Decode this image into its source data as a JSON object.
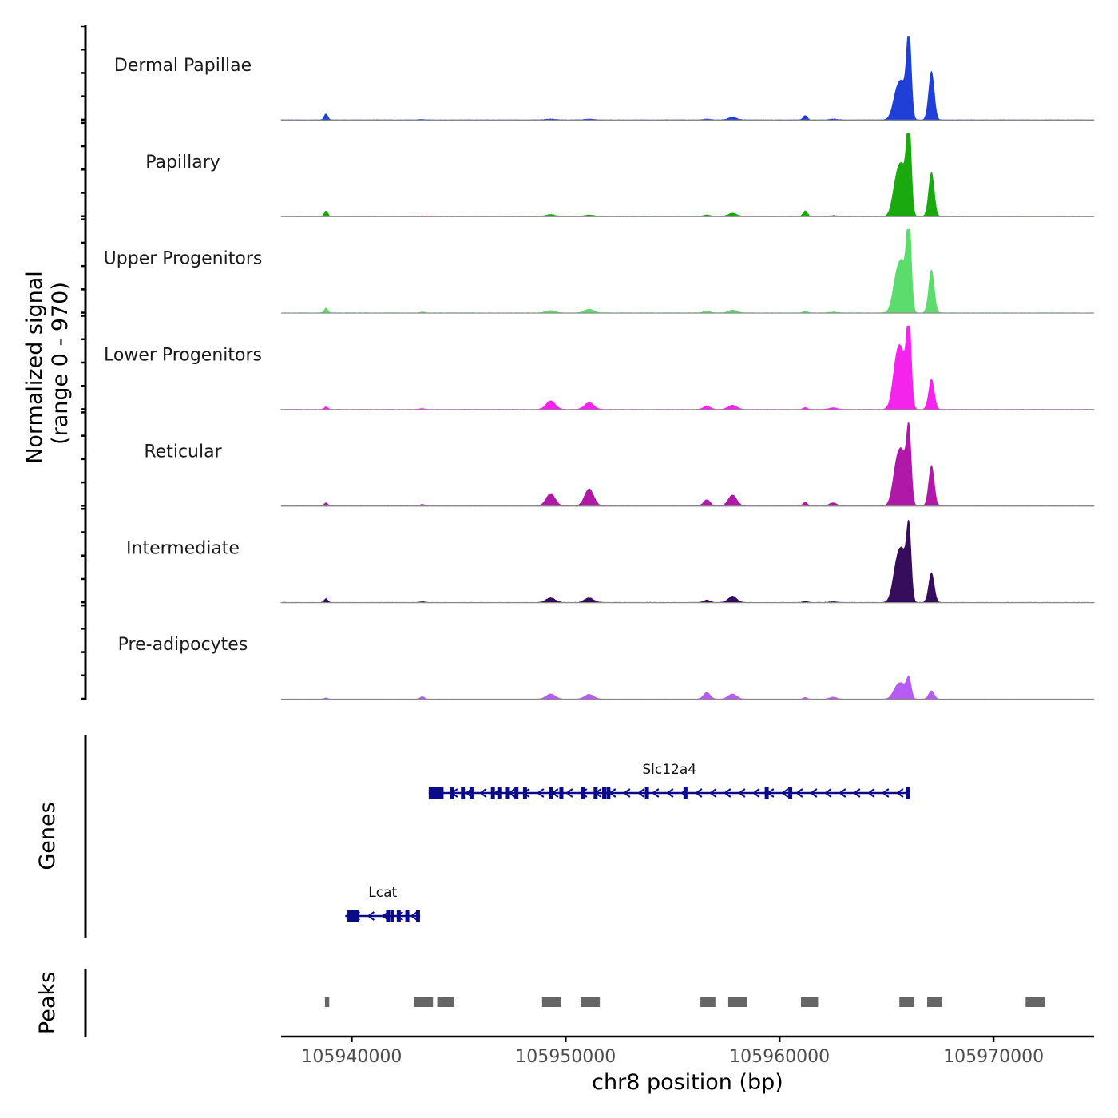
{
  "chart_data": {
    "type": "coverage",
    "chromosome": "chr8",
    "region": {
      "start": 105936700,
      "end": 105974700
    },
    "y_axis_title": "Normalized signal",
    "y_axis_range_label": "(range 0 - 970)",
    "ylim": [
      0,
      970
    ],
    "x_axis_title": "chr8 position (bp)",
    "x_ticks": [
      {
        "value": 105940000,
        "label": "105940000"
      },
      {
        "value": 105950000,
        "label": "105950000"
      },
      {
        "value": 105960000,
        "label": "105960000"
      },
      {
        "value": 105970000,
        "label": "105970000"
      }
    ],
    "tracks": [
      {
        "name": "Dermal Papillae",
        "color": "#1f3fd6",
        "scale": 1.0
      },
      {
        "name": "Papillary",
        "color": "#1aaa10",
        "scale": 1.06
      },
      {
        "name": "Upper Progenitors",
        "color": "#5cdc6c",
        "scale": 1.06
      },
      {
        "name": "Lower Progenitors",
        "color": "#f424ec",
        "scale": 1.0
      },
      {
        "name": "Reticular",
        "color": "#b018a8",
        "scale": 0.9
      },
      {
        "name": "Intermediate",
        "color": "#360c5c",
        "scale": 0.9
      },
      {
        "name": "Pre-adipocytes",
        "color": "#b65cf2",
        "scale": 0.46
      }
    ],
    "coverage_peaks": [
      {
        "pos": 105938800,
        "width": 120,
        "heights": [
          70,
          60,
          50,
          30,
          40,
          50,
          30
        ]
      },
      {
        "pos": 105943300,
        "width": 150,
        "heights": [
          5,
          5,
          10,
          10,
          20,
          10,
          60
        ]
      },
      {
        "pos": 105949300,
        "width": 300,
        "heights": [
          10,
          20,
          25,
          100,
          160,
          60,
          130
        ]
      },
      {
        "pos": 105951100,
        "width": 300,
        "heights": [
          10,
          15,
          40,
          80,
          220,
          60,
          120
        ]
      },
      {
        "pos": 105956600,
        "width": 220,
        "heights": [
          10,
          15,
          20,
          40,
          80,
          30,
          170
        ]
      },
      {
        "pos": 105957800,
        "width": 280,
        "heights": [
          30,
          35,
          30,
          50,
          140,
          80,
          130
        ]
      },
      {
        "pos": 105961200,
        "width": 140,
        "heights": [
          50,
          60,
          20,
          20,
          50,
          20,
          40
        ]
      },
      {
        "pos": 105962500,
        "width": 250,
        "heights": [
          10,
          10,
          10,
          20,
          40,
          10,
          50
        ]
      },
      {
        "pos": 105965500,
        "width": 280,
        "heights": [
          330,
          420,
          410,
          600,
          550,
          500,
          310
        ]
      },
      {
        "pos": 105965800,
        "width": 250,
        "heights": [
          300,
          390,
          390,
          420,
          480,
          480,
          260
        ]
      },
      {
        "pos": 105966050,
        "width": 150,
        "heights": [
          970,
          970,
          970,
          970,
          880,
          860,
          480
        ]
      },
      {
        "pos": 105967100,
        "width": 180,
        "heights": [
          560,
          480,
          470,
          350,
          520,
          380,
          210
        ]
      }
    ],
    "genes": [
      {
        "name": "Slc12a4",
        "start": 105943600,
        "end": 105966100,
        "strand": "-",
        "exons": [
          105943600,
          105943900,
          105944200,
          105944700,
          105945200,
          105945600,
          105946600,
          105946900,
          105947300,
          105947700,
          105948100,
          105949300,
          105949800,
          105950800,
          105951400,
          105951800,
          105952000,
          105953800,
          105955600,
          105959400,
          105960500,
          105966000
        ]
      },
      {
        "name": "Lcat",
        "start": 105939700,
        "end": 105943200,
        "strand": "-",
        "exons": [
          105939800,
          105940100,
          105941700,
          105941900,
          105942200,
          105942600,
          105943100
        ]
      }
    ],
    "peaks_track_label": "Peaks",
    "genes_track_label": "Genes",
    "peak_regions": [
      [
        105938750,
        105938950
      ],
      [
        105942900,
        105943800
      ],
      [
        105944000,
        105944800
      ],
      [
        105948900,
        105949800
      ],
      [
        105950700,
        105951600
      ],
      [
        105956300,
        105957000
      ],
      [
        105957600,
        105958500
      ],
      [
        105961000,
        105961800
      ],
      [
        105965600,
        105966300
      ],
      [
        105966900,
        105967600
      ],
      [
        105971500,
        105972400
      ]
    ],
    "peak_color": "#666666"
  }
}
